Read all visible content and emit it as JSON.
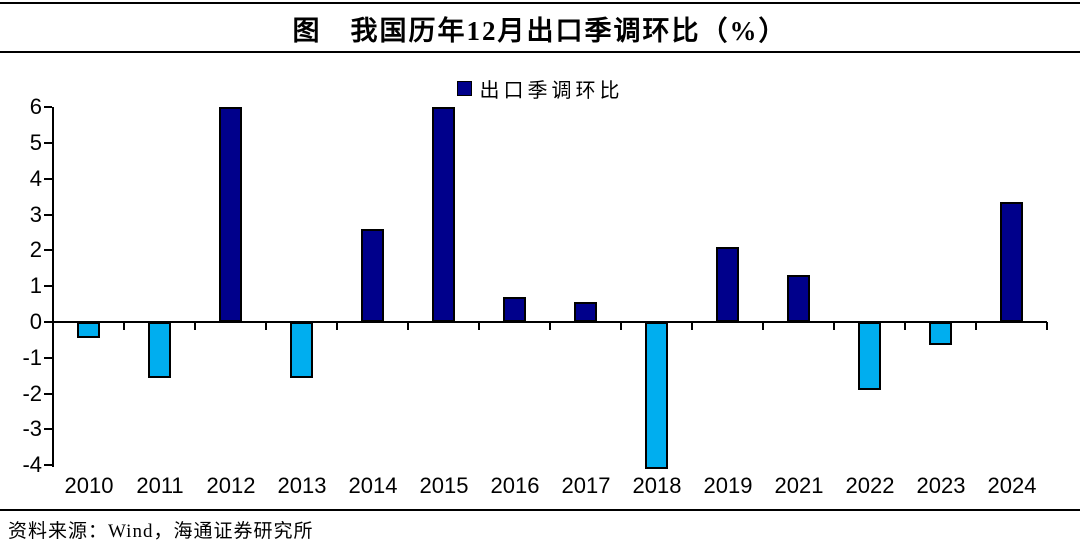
{
  "header": {
    "title": "图　我国历年12月出口季调环比（%）"
  },
  "chart_data": {
    "type": "bar",
    "title": "图　我国历年12月出口季调环比（%）",
    "legend_label": "出口季调环比",
    "categories": [
      "2010",
      "2011",
      "2012",
      "2013",
      "2014",
      "2015",
      "2016",
      "2017",
      "2018",
      "2019",
      "2021",
      "2022",
      "2023",
      "2024"
    ],
    "values": [
      -0.45,
      -1.55,
      6.0,
      -1.55,
      2.6,
      6.0,
      0.7,
      0.55,
      -4.1,
      2.1,
      1.3,
      -1.9,
      -0.65,
      3.35
    ],
    "ylabel": "",
    "xlabel": "",
    "ylim": [
      -4,
      6
    ],
    "ytick_interval": 1,
    "yticks": [
      6,
      5,
      4,
      3,
      2,
      1,
      0,
      -1,
      -2,
      -3,
      -4
    ],
    "grid": false,
    "legend_position": "top-center",
    "colors": {
      "positive": "#00008B",
      "negative": "#00AEEF",
      "axis": "#000000"
    }
  },
  "footer": {
    "source": "资料来源：Wind，海通证券研究所"
  }
}
